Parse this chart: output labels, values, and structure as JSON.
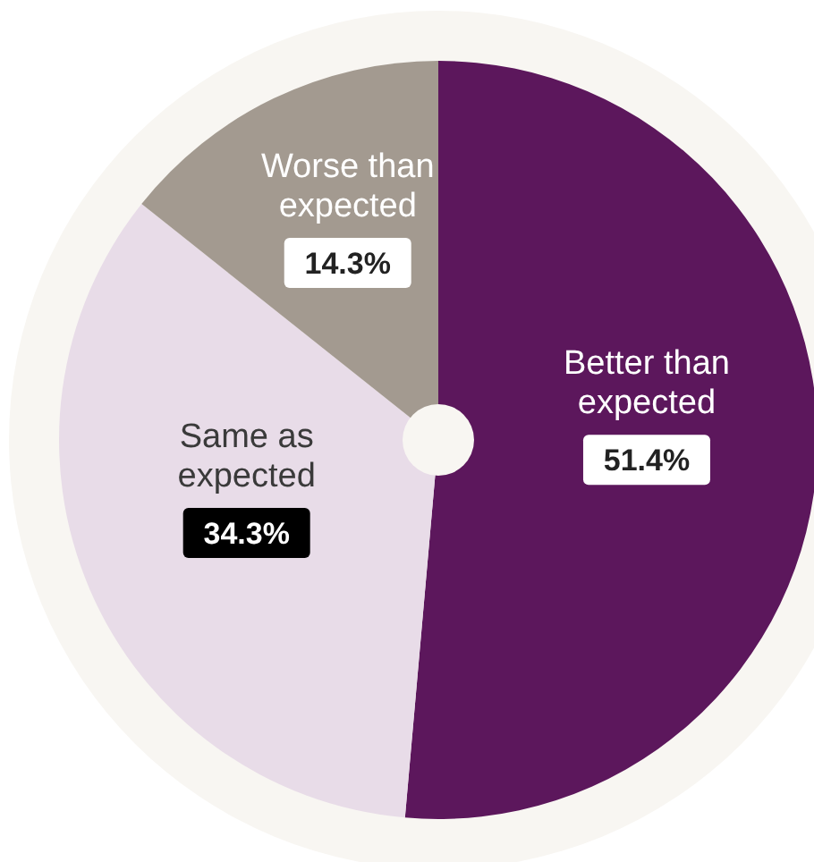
{
  "chart_data": {
    "type": "pie",
    "categories": [
      "Better than expected",
      "Same as expected",
      "Worse than expected"
    ],
    "values": [
      51.4,
      34.3,
      14.3
    ],
    "colors": [
      "#5c175c",
      "#e8dce8",
      "#a39a90"
    ],
    "value_labels": [
      "51.4%",
      "34.3%",
      "14.3%"
    ]
  }
}
